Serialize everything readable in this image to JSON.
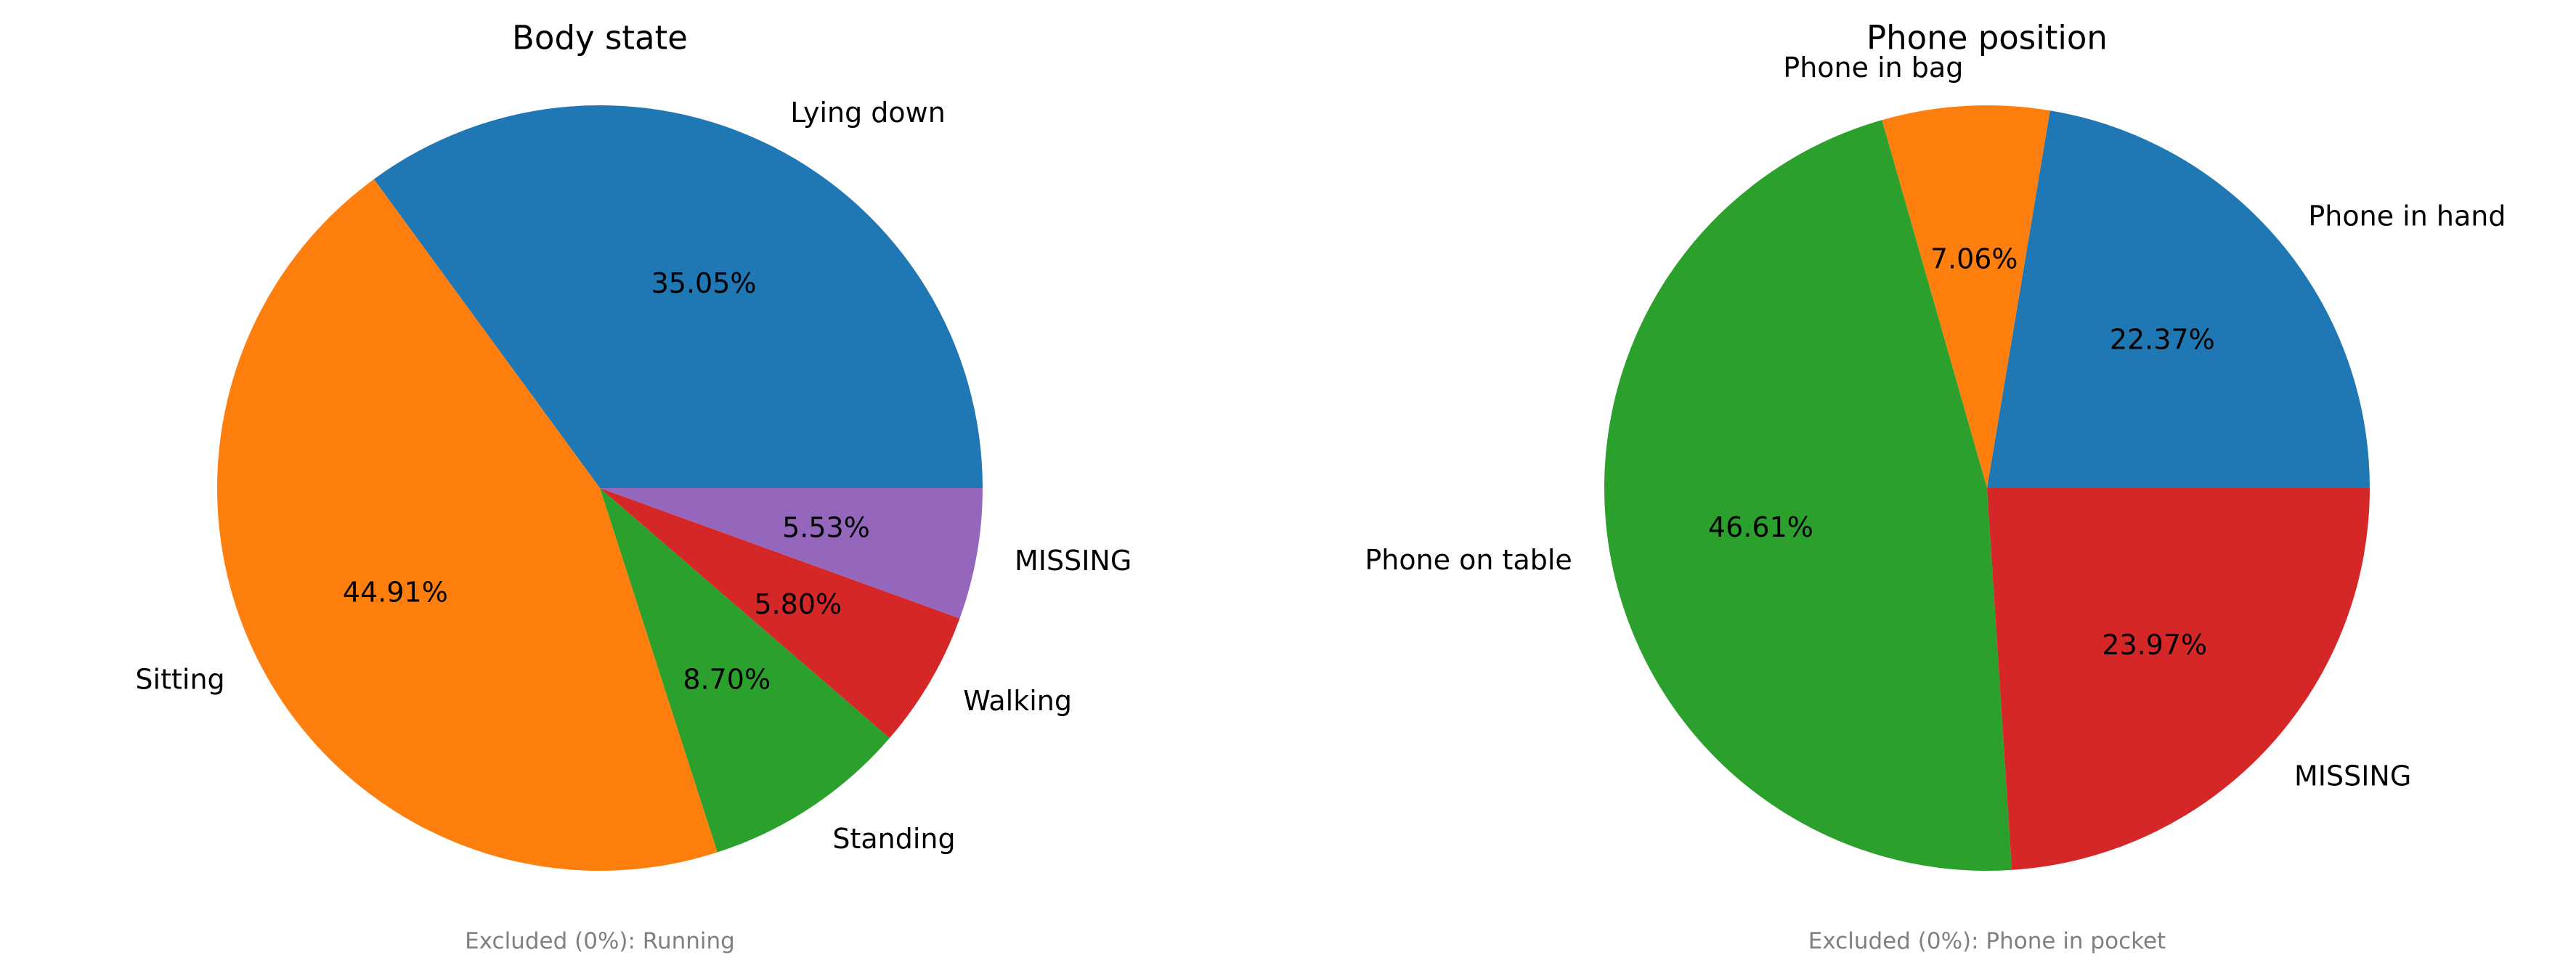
{
  "chart_data": [
    {
      "type": "pie",
      "title": "Body state",
      "slices": [
        {
          "label": "Lying down",
          "value": 35.05,
          "pct_label": "35.05%",
          "color": "#1f77b4"
        },
        {
          "label": "Sitting",
          "value": 44.91,
          "pct_label": "44.91%",
          "color": "#ff7f0e"
        },
        {
          "label": "Standing",
          "value": 8.7,
          "pct_label": "8.70%",
          "color": "#2ca02c"
        },
        {
          "label": "Walking",
          "value": 5.8,
          "pct_label": "5.80%",
          "color": "#d62728"
        },
        {
          "label": "MISSING",
          "value": 5.53,
          "pct_label": "5.53%",
          "color": "#9467bd"
        }
      ],
      "start_angle_deg": 0,
      "direction": "counterclockwise",
      "footnote": "Excluded (0%): Running"
    },
    {
      "type": "pie",
      "title": "Phone position",
      "slices": [
        {
          "label": "Phone in hand",
          "value": 22.37,
          "pct_label": "22.37%",
          "color": "#1f77b4"
        },
        {
          "label": "Phone in bag",
          "value": 7.06,
          "pct_label": "7.06%",
          "color": "#ff7f0e"
        },
        {
          "label": "Phone on table",
          "value": 46.61,
          "pct_label": "46.61%",
          "color": "#2ca02c"
        },
        {
          "label": "MISSING",
          "value": 23.97,
          "pct_label": "23.97%",
          "color": "#d62728"
        }
      ],
      "start_angle_deg": 0,
      "direction": "counterclockwise",
      "footnote": "Excluded (0%): Phone in pocket"
    }
  ]
}
